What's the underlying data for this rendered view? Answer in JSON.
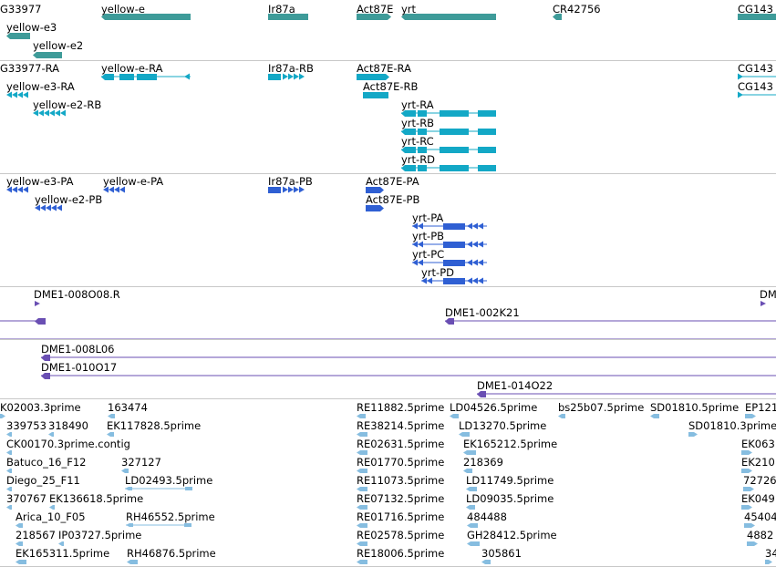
{
  "colors": {
    "gene": "#3e9b99",
    "transcript": "#13a8c6",
    "protein": "#2f5fd3",
    "bac": "#6a4fb3",
    "est": "#86bde0",
    "separator": "#c8c8c8"
  },
  "gene_track": {
    "labels": [
      "G33977",
      "yellow-e",
      "Ir87a",
      "Act87E",
      "yrt",
      "CR42756",
      "CG143",
      "yellow-e3",
      "yellow-e2"
    ]
  },
  "transcript_track": {
    "labels": [
      "G33977-RA",
      "yellow-e-RA",
      "Ir87a-RB",
      "Act87E-RA",
      "CG143",
      "yellow-e3-RA",
      "Act87E-RB",
      "CG143",
      "yellow-e2-RB",
      "yrt-RA",
      "yrt-RB",
      "yrt-RC",
      "yrt-RD"
    ]
  },
  "protein_track": {
    "labels": [
      "yellow-e3-PA",
      "yellow-e-PA",
      "Ir87a-PB",
      "Act87E-PA",
      "yellow-e2-PB",
      "Act87E-PB",
      "yrt-PA",
      "yrt-PB",
      "yrt-PC",
      "yrt-PD"
    ]
  },
  "bac_track": {
    "labels": [
      "DME1-008O08.R",
      "DM",
      "DME1-002K21",
      "DME1-008L06",
      "DME1-010O17",
      "DME1-014O22"
    ]
  },
  "est_track": {
    "labels": [
      "K02003.3prime",
      "163474",
      "RE11882.5prime",
      "LD04526.5prime",
      "bs25b07.5prime",
      "SD01810.5prime",
      "EP121",
      "339753",
      "318490",
      "EK117828.5prime",
      "RE38214.5prime",
      "LD13270.5prime",
      "SD01810.3prime",
      "CK00170.3prime.contig",
      "RE02631.5prime",
      "EK165212.5prime",
      "EK063",
      "Batuco_16_F12",
      "327127",
      "RE01770.5prime",
      "218369",
      "EK210",
      "Diego_25_F11",
      "LD02493.5prime",
      "RE11073.5prime",
      "LD11749.5prime",
      "72726",
      "370767",
      "EK136618.5prime",
      "RE07132.5prime",
      "LD09035.5prime",
      "EK049",
      "Arica_10_F05",
      "RH46552.5prime",
      "RE01716.5prime",
      "484488",
      "45404",
      "218567",
      "IP03727.5prime",
      "RE02578.5prime",
      "GH28412.5prime",
      "4882",
      "EK165311.5prime",
      "RH46876.5prime",
      "RE18006.5prime",
      "305861",
      "34"
    ]
  }
}
